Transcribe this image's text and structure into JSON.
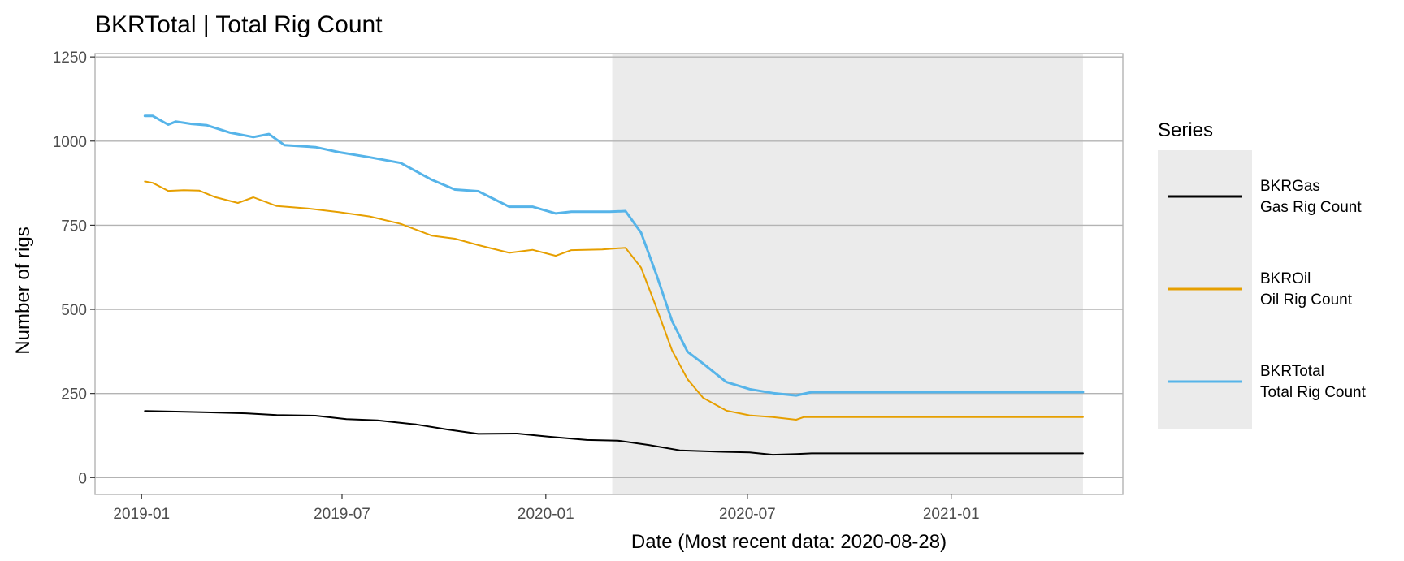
{
  "chart_data": {
    "type": "line",
    "title": "BKRTotal | Total Rig Count",
    "xlabel": "Date (Most recent data: 2020-08-28)",
    "ylabel": "Number of rigs",
    "x_ticks": [
      "2019-01",
      "2019-07",
      "2020-01",
      "2020-07",
      "2021-01"
    ],
    "y_ticks": [
      0,
      250,
      500,
      750,
      1000,
      1250
    ],
    "xlim": [
      "2018-11-20",
      "2021-06-05"
    ],
    "ylim": [
      -50,
      1260
    ],
    "grid": "horizontal major",
    "shaded_region": {
      "start": "2020-03-01",
      "end": "2021-04-30"
    },
    "legend": {
      "title": "Series",
      "position": "right"
    },
    "series": [
      {
        "name": "BKRGas",
        "label": "Gas Rig Count",
        "color": "#000000",
        "points": [
          [
            "2019-01-04",
            198
          ],
          [
            "2019-02-01",
            196
          ],
          [
            "2019-03-01",
            194
          ],
          [
            "2019-04-05",
            191
          ],
          [
            "2019-05-03",
            186
          ],
          [
            "2019-06-07",
            184
          ],
          [
            "2019-07-05",
            174
          ],
          [
            "2019-08-02",
            170
          ],
          [
            "2019-09-06",
            158
          ],
          [
            "2019-10-04",
            143
          ],
          [
            "2019-11-01",
            130
          ],
          [
            "2019-12-06",
            131
          ],
          [
            "2020-01-03",
            122
          ],
          [
            "2020-02-07",
            112
          ],
          [
            "2020-03-06",
            110
          ],
          [
            "2020-04-03",
            97
          ],
          [
            "2020-05-01",
            81
          ],
          [
            "2020-06-05",
            77
          ],
          [
            "2020-07-03",
            75
          ],
          [
            "2020-07-24",
            68
          ],
          [
            "2020-08-14",
            70
          ],
          [
            "2020-08-28",
            72
          ],
          [
            "2021-04-30",
            72
          ]
        ]
      },
      {
        "name": "BKROil",
        "label": "Oil Rig Count",
        "color": "#E69F00",
        "points": [
          [
            "2019-01-04",
            880
          ],
          [
            "2019-01-11",
            876
          ],
          [
            "2019-01-25",
            852
          ],
          [
            "2019-02-08",
            854
          ],
          [
            "2019-02-22",
            853
          ],
          [
            "2019-03-08",
            834
          ],
          [
            "2019-03-29",
            816
          ],
          [
            "2019-04-12",
            833
          ],
          [
            "2019-05-03",
            807
          ],
          [
            "2019-05-31",
            800
          ],
          [
            "2019-06-28",
            789
          ],
          [
            "2019-07-26",
            776
          ],
          [
            "2019-08-23",
            754
          ],
          [
            "2019-09-20",
            719
          ],
          [
            "2019-10-11",
            710
          ],
          [
            "2019-11-01",
            691
          ],
          [
            "2019-11-29",
            668
          ],
          [
            "2019-12-20",
            677
          ],
          [
            "2020-01-10",
            659
          ],
          [
            "2020-01-24",
            676
          ],
          [
            "2020-02-21",
            678
          ],
          [
            "2020-03-13",
            683
          ],
          [
            "2020-03-27",
            624
          ],
          [
            "2020-04-10",
            504
          ],
          [
            "2020-04-24",
            378
          ],
          [
            "2020-05-08",
            292
          ],
          [
            "2020-05-22",
            237
          ],
          [
            "2020-06-12",
            199
          ],
          [
            "2020-07-03",
            185
          ],
          [
            "2020-07-24",
            180
          ],
          [
            "2020-08-14",
            172
          ],
          [
            "2020-08-21",
            180
          ],
          [
            "2021-04-30",
            180
          ]
        ]
      },
      {
        "name": "BKRTotal",
        "label": "Total Rig Count",
        "color": "#56B4E9",
        "points": [
          [
            "2019-01-04",
            1075
          ],
          [
            "2019-01-11",
            1075
          ],
          [
            "2019-01-25",
            1049
          ],
          [
            "2019-02-01",
            1058
          ],
          [
            "2019-02-15",
            1051
          ],
          [
            "2019-03-01",
            1047
          ],
          [
            "2019-03-22",
            1025
          ],
          [
            "2019-04-12",
            1012
          ],
          [
            "2019-04-26",
            1021
          ],
          [
            "2019-05-10",
            988
          ],
          [
            "2019-06-07",
            982
          ],
          [
            "2019-06-28",
            967
          ],
          [
            "2019-07-26",
            952
          ],
          [
            "2019-08-23",
            935
          ],
          [
            "2019-09-20",
            885
          ],
          [
            "2019-10-11",
            856
          ],
          [
            "2019-11-01",
            851
          ],
          [
            "2019-11-29",
            805
          ],
          [
            "2019-12-20",
            805
          ],
          [
            "2020-01-10",
            785
          ],
          [
            "2020-01-24",
            790
          ],
          [
            "2020-02-28",
            790
          ],
          [
            "2020-03-13",
            792
          ],
          [
            "2020-03-27",
            728
          ],
          [
            "2020-04-10",
            602
          ],
          [
            "2020-04-24",
            465
          ],
          [
            "2020-05-08",
            374
          ],
          [
            "2020-05-22",
            339
          ],
          [
            "2020-06-12",
            284
          ],
          [
            "2020-07-03",
            263
          ],
          [
            "2020-07-24",
            251
          ],
          [
            "2020-08-14",
            244
          ],
          [
            "2020-08-28",
            254
          ],
          [
            "2021-04-30",
            254
          ]
        ]
      }
    ]
  }
}
